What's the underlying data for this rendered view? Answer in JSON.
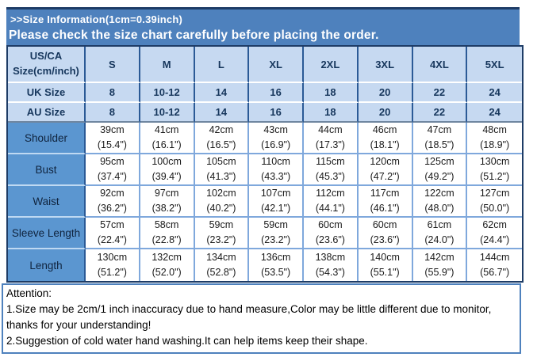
{
  "banner": {
    "title": ">>Size Information(1cm=0.39inch)",
    "subtitle": "Please check the size chart carefully before placing the order."
  },
  "table": {
    "corner": [
      "US/CA",
      "Size(cm/inch)"
    ],
    "size_columns": [
      "S",
      "M",
      "L",
      "XL",
      "2XL",
      "3XL",
      "4XL",
      "5XL"
    ],
    "size_rows": [
      {
        "label": "UK Size",
        "values": [
          "8",
          "10-12",
          "14",
          "16",
          "18",
          "20",
          "22",
          "24"
        ]
      },
      {
        "label": "AU Size",
        "values": [
          "8",
          "10-12",
          "14",
          "16",
          "18",
          "20",
          "22",
          "24"
        ]
      }
    ],
    "measurement_rows": [
      {
        "label": "Shoulder",
        "cells": [
          [
            "39cm",
            "(15.4\")"
          ],
          [
            "41cm",
            "(16.1\")"
          ],
          [
            "42cm",
            "(16.5\")"
          ],
          [
            "43cm",
            "(16.9\")"
          ],
          [
            "44cm",
            "(17.3\")"
          ],
          [
            "46cm",
            "(18.1\")"
          ],
          [
            "47cm",
            "(18.5\")"
          ],
          [
            "48cm",
            "(18.9\")"
          ]
        ]
      },
      {
        "label": "Bust",
        "cells": [
          [
            "95cm",
            "(37.4\")"
          ],
          [
            "100cm",
            "(39.4\")"
          ],
          [
            "105cm",
            "(41.3\")"
          ],
          [
            "110cm",
            "(43.3\")"
          ],
          [
            "115cm",
            "(45.3\")"
          ],
          [
            "120cm",
            "(47.2\")"
          ],
          [
            "125cm",
            "(49.2\")"
          ],
          [
            "130cm",
            "(51.2\")"
          ]
        ]
      },
      {
        "label": "Waist",
        "cells": [
          [
            "92cm",
            "(36.2\")"
          ],
          [
            "97cm",
            "(38.2\")"
          ],
          [
            "102cm",
            "(40.2\")"
          ],
          [
            "107cm",
            "(42.1\")"
          ],
          [
            "112cm",
            "(44.1\")"
          ],
          [
            "117cm",
            "(46.1\")"
          ],
          [
            "122cm",
            "(48.0\")"
          ],
          [
            "127cm",
            "(50.0\")"
          ]
        ]
      },
      {
        "label": "Sleeve Length",
        "cells": [
          [
            "57cm",
            "(22.4\")"
          ],
          [
            "58cm",
            "(22.8\")"
          ],
          [
            "59cm",
            "(23.2\")"
          ],
          [
            "59cm",
            "(23.2\")"
          ],
          [
            "60cm",
            "(23.6\")"
          ],
          [
            "60cm",
            "(23.6\")"
          ],
          [
            "61cm",
            "(24.0\")"
          ],
          [
            "62cm",
            "(24.4\")"
          ]
        ]
      },
      {
        "label": "Length",
        "cells": [
          [
            "130cm",
            "(51.2\")"
          ],
          [
            "132cm",
            "(52.0\")"
          ],
          [
            "134cm",
            "(52.8\")"
          ],
          [
            "136cm",
            "(53.5\")"
          ],
          [
            "138cm",
            "(54.3\")"
          ],
          [
            "140cm",
            "(55.1\")"
          ],
          [
            "142cm",
            "(55.9\")"
          ],
          [
            "144cm",
            "(56.7\")"
          ]
        ]
      }
    ]
  },
  "attention": {
    "title": "Attention:",
    "lines": [
      "1.Size may be 2cm/1 inch inaccuracy due to hand measure,Color may be little different due to monitor, thanks for your understanding!",
      "2.Suggestion of cold water hand washing.It can help items keep their shape."
    ]
  },
  "colors": {
    "banner_blue": "#4E81BD",
    "banner_top_border": "#1E3C66",
    "header_cell_blue": "#C6D9F1",
    "label_column_blue": "#5B96D0",
    "table_border_navy": "#1E3C66",
    "data_grid_blue": "#7FA8DC",
    "attention_border_blue": "#4E81BD",
    "header_text_navy": "#16365C"
  }
}
